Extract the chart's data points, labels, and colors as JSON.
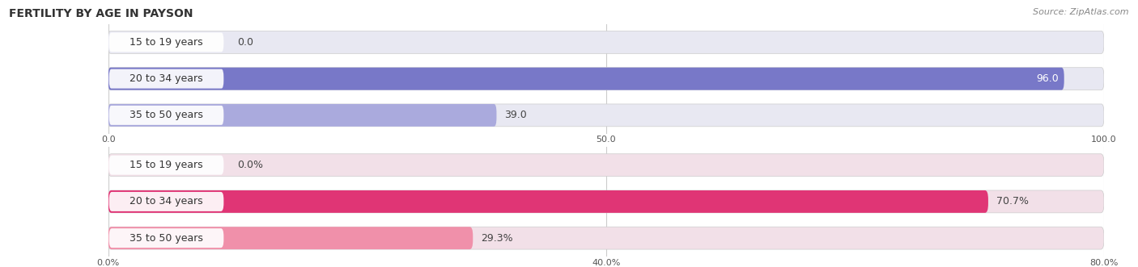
{
  "title": "FERTILITY BY AGE IN PAYSON",
  "source": "Source: ZipAtlas.com",
  "top_chart": {
    "categories": [
      "15 to 19 years",
      "20 to 34 years",
      "35 to 50 years"
    ],
    "values": [
      0.0,
      96.0,
      39.0
    ],
    "max_val": 100,
    "xticks": [
      0.0,
      50.0,
      100.0
    ],
    "xtick_labels": [
      "0.0",
      "50.0",
      "100.0"
    ],
    "bar_color_strong": "#7878c8",
    "bar_color_light": "#aaaadd",
    "bar_bg_color": "#e8e8f2",
    "value_label_inside_color": "#ffffff",
    "value_label_outside_color": "#555555"
  },
  "bottom_chart": {
    "categories": [
      "15 to 19 years",
      "20 to 34 years",
      "35 to 50 years"
    ],
    "values": [
      0.0,
      70.7,
      29.3
    ],
    "max_val": 80,
    "xticks": [
      0.0,
      40.0,
      80.0
    ],
    "xtick_labels": [
      "0.0%",
      "40.0%",
      "80.0%"
    ],
    "bar_color_strong": "#e03575",
    "bar_color_light": "#f090aa",
    "bar_bg_color": "#f2e0e8",
    "value_label_inside_color": "#ffffff",
    "value_label_outside_color": "#555555"
  },
  "label_fontsize": 9,
  "tick_fontsize": 8,
  "title_fontsize": 10,
  "source_fontsize": 8,
  "bar_height": 0.6,
  "cat_label_color": "#333333",
  "background_color": "#ffffff",
  "grid_color": "#cccccc"
}
